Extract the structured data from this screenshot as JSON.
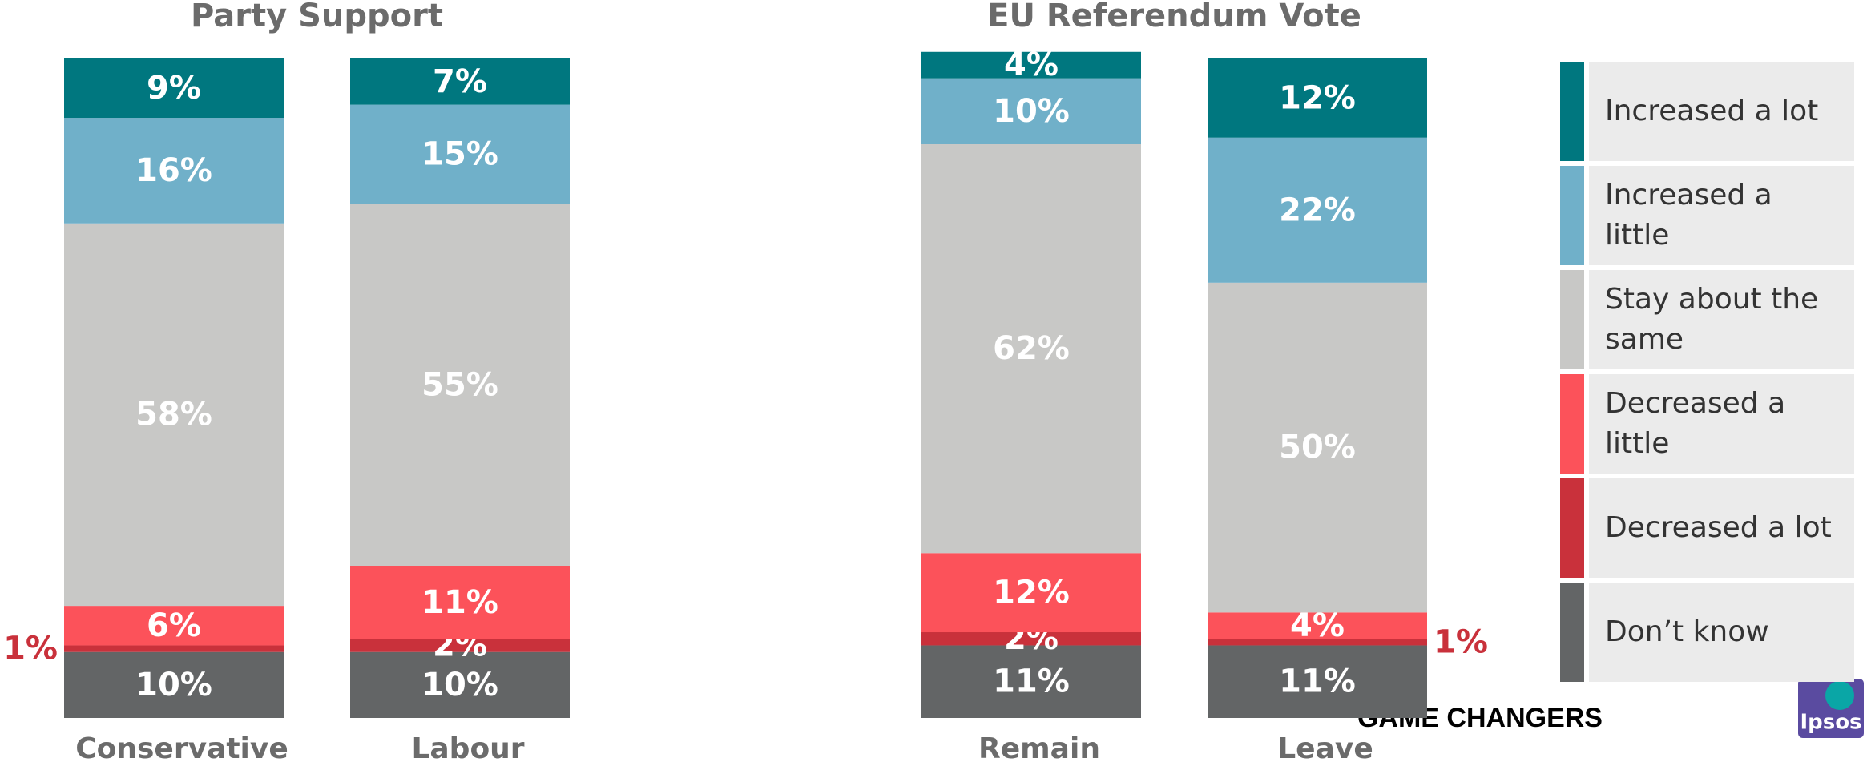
{
  "chart_data": {
    "type": "stacked_bar",
    "groups": [
      {
        "title": "Party Support",
        "categories": [
          "Conservative",
          "Labour"
        ]
      },
      {
        "title": "EU Referendum Vote",
        "categories": [
          "Remain",
          "Leave"
        ]
      }
    ],
    "ylim": [
      0,
      100
    ],
    "series": [
      {
        "name": "Increased a lot",
        "color": "#00777f",
        "values": [
          9,
          7,
          4,
          12
        ],
        "value_labels": [
          "9%",
          "7%",
          "4%",
          "12%"
        ]
      },
      {
        "name": "Increased a little",
        "color": "#70b0c9",
        "values": [
          16,
          15,
          10,
          22
        ],
        "value_labels": [
          "16%",
          "15%",
          "10%",
          "22%"
        ]
      },
      {
        "name": "Stay about the same",
        "color": "#c8c8c6",
        "values": [
          58,
          55,
          62,
          50
        ],
        "value_labels": [
          "58%",
          "55%",
          "62%",
          "50%"
        ]
      },
      {
        "name": "Decreased a little",
        "color": "#fc525a",
        "values": [
          6,
          11,
          12,
          4
        ],
        "value_labels": [
          "6%",
          "11%",
          "12%",
          "4%"
        ]
      },
      {
        "name": "Decreased a lot",
        "color": "#c9313b",
        "values": [
          1,
          2,
          2,
          1
        ],
        "value_labels": [
          "1%",
          "2%",
          "2%",
          "1%"
        ]
      },
      {
        "name": "Don’t know",
        "color": "#636566",
        "values": [
          10,
          10,
          11,
          11
        ],
        "value_labels": [
          "10%",
          "10%",
          "11%",
          "11%"
        ]
      }
    ]
  },
  "footer": {
    "brand": "GAME CHANGERS",
    "logo": "Ipsos"
  }
}
